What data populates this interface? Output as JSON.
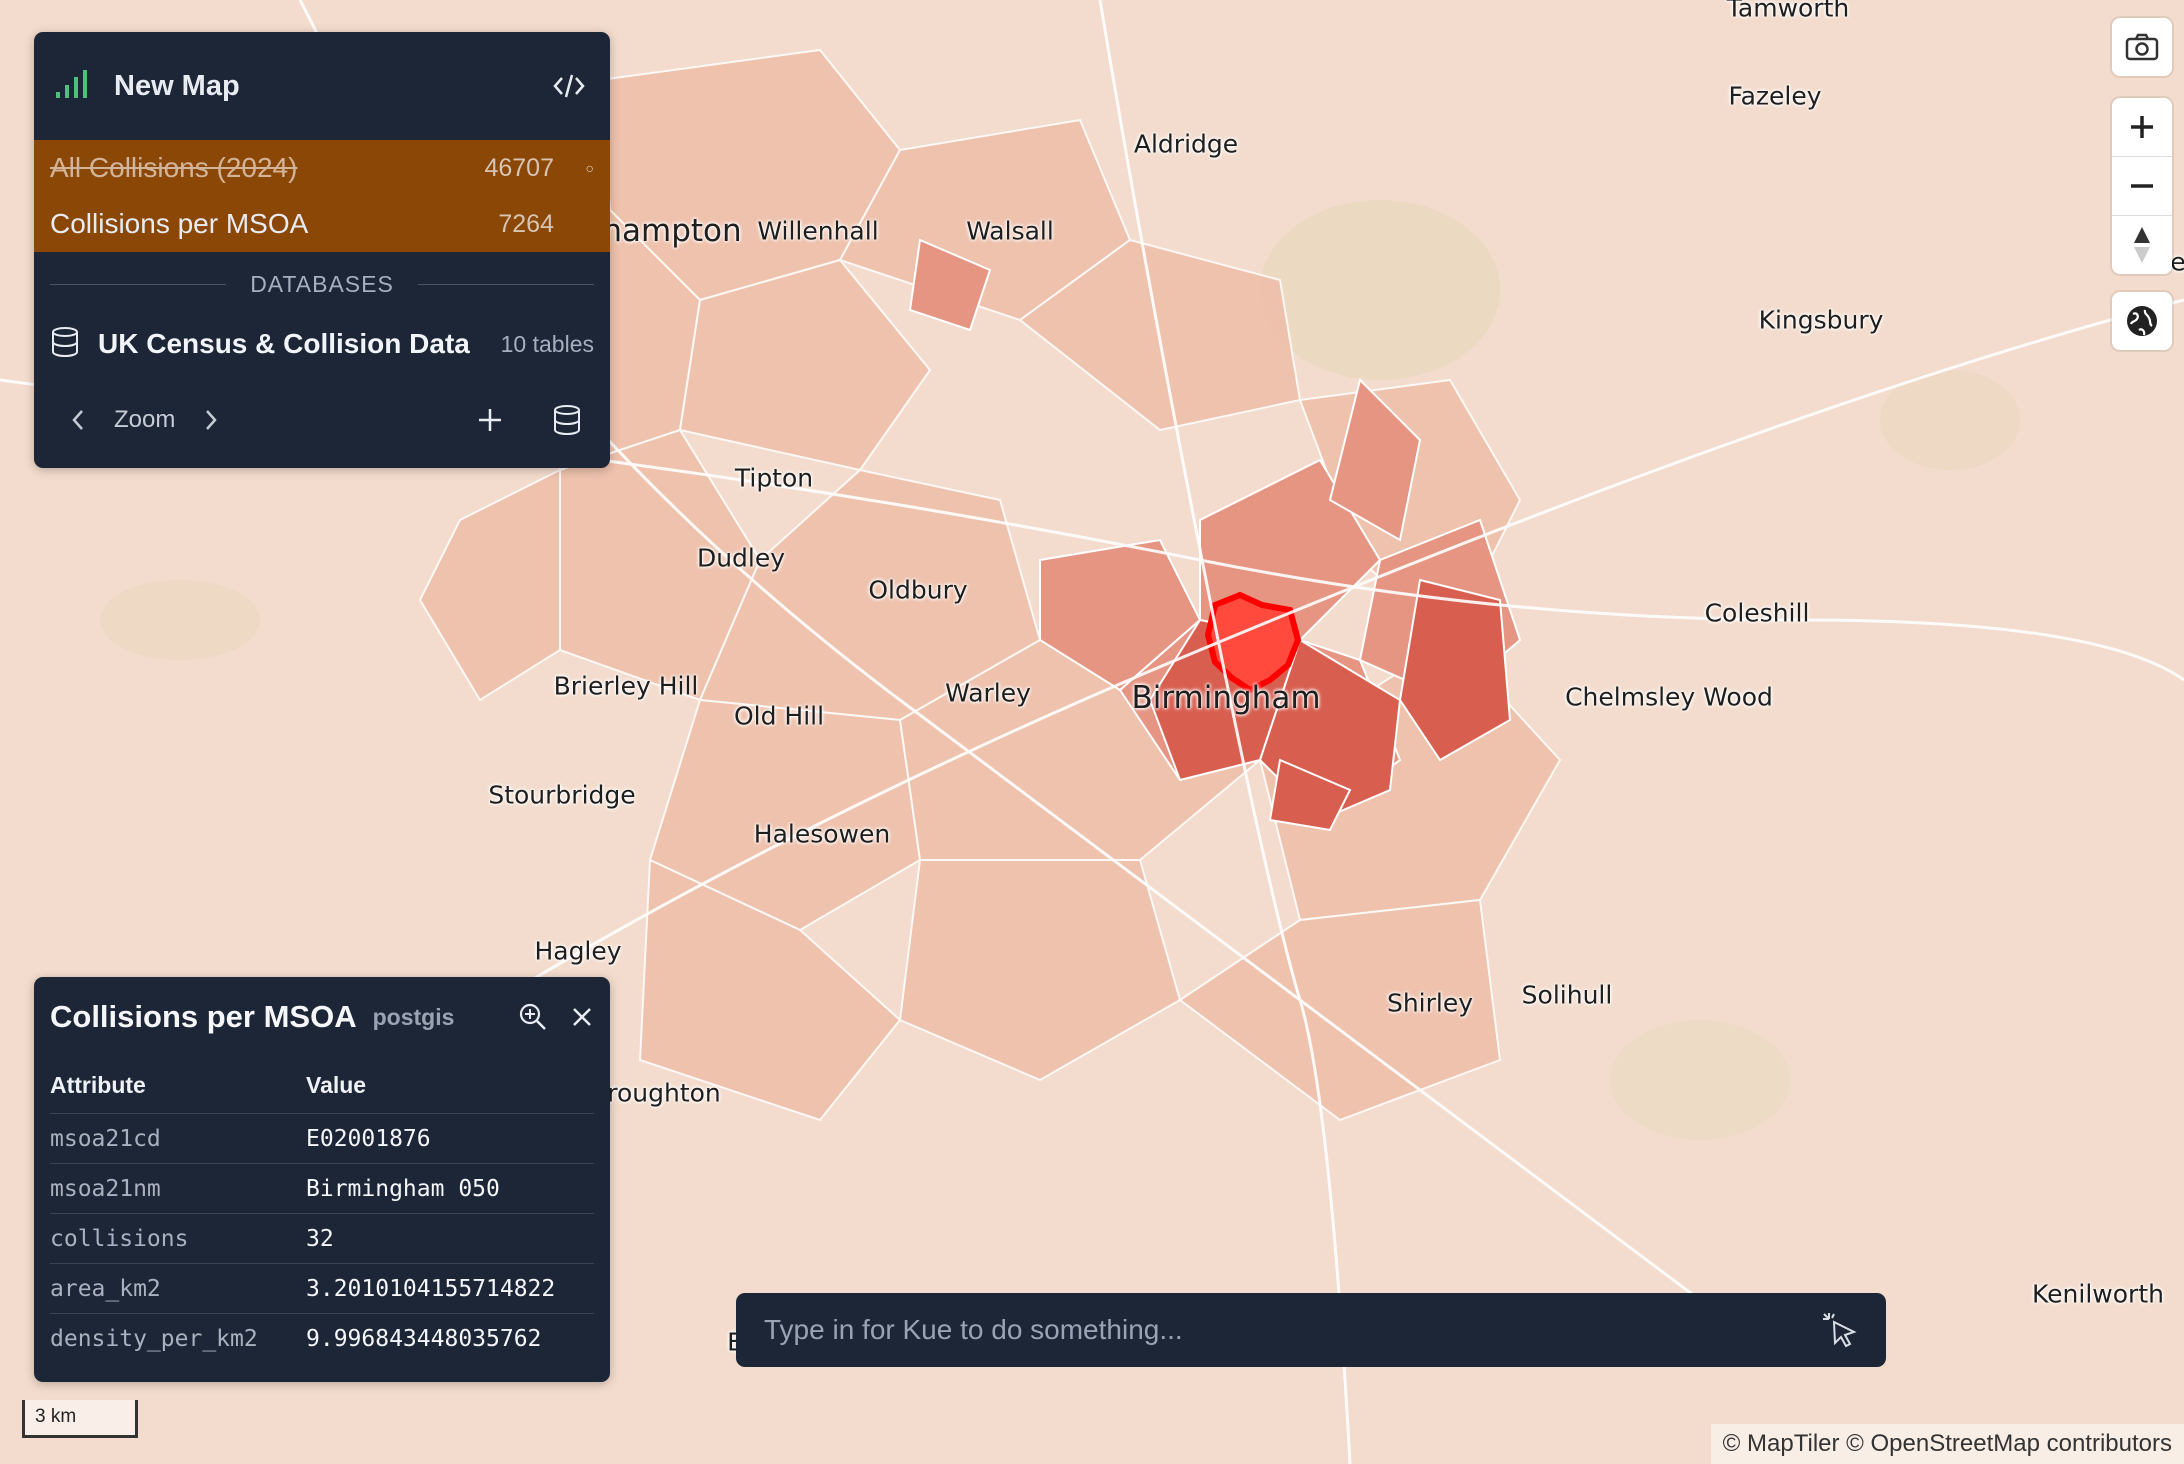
{
  "map": {
    "places": [
      {
        "name": "Tamworth"
      },
      {
        "name": "Fazeley"
      },
      {
        "name": "Aldridge"
      },
      {
        "name": "hampton"
      },
      {
        "name": "Willenhall"
      },
      {
        "name": "Walsall"
      },
      {
        "name": "Kingsbury"
      },
      {
        "name": "Tipton"
      },
      {
        "name": "Dudley"
      },
      {
        "name": "Oldbury"
      },
      {
        "name": "Coleshill"
      },
      {
        "name": "Brierley Hill"
      },
      {
        "name": "Old Hill"
      },
      {
        "name": "Warley"
      },
      {
        "name": "Birmingham"
      },
      {
        "name": "Chelmsley Wood"
      },
      {
        "name": "Stourbridge"
      },
      {
        "name": "Halesowen"
      },
      {
        "name": "Hagley"
      },
      {
        "name": "Shirley"
      },
      {
        "name": "Solihull"
      },
      {
        "name": "roughton"
      },
      {
        "name": "Kenilworth"
      },
      {
        "name": "he"
      },
      {
        "name": "E"
      }
    ],
    "choropleth_colors": {
      "low": "#f2cbb8",
      "mid": "#e79a83",
      "high": "#d8574b",
      "highlight": "#ff1a1a"
    }
  },
  "top_panel": {
    "title": "New Map",
    "layers": [
      {
        "name": "All Collisions (2024)",
        "count": "46707",
        "hidden": true,
        "dot": "○"
      },
      {
        "name": "Collisions per MSOA",
        "count": "7264"
      }
    ],
    "databases_label": "DATABASES",
    "database": {
      "name": "UK Census & Collision Data",
      "count": "10 tables"
    },
    "zoom_label": "Zoom",
    "layer_bg": "#8b4706"
  },
  "info_panel": {
    "title": "Collisions per MSOA",
    "source": "postgis",
    "col_attr": "Attribute",
    "col_value": "Value",
    "rows": [
      {
        "k": "msoa21cd",
        "v": "E02001876"
      },
      {
        "k": "msoa21nm",
        "v": "Birmingham 050"
      },
      {
        "k": "collisions",
        "v": "32"
      },
      {
        "k": "area_km2",
        "v": "3.2010104155714822"
      },
      {
        "k": "density_per_km2",
        "v": "9.996843448035762"
      }
    ]
  },
  "prompt": {
    "placeholder": "Type in for Kue to do something..."
  },
  "scale": "3 km",
  "attribution": "© MapTiler © OpenStreetMap contributors",
  "icons": [
    "signal-bars-icon",
    "code-icon",
    "database-icon",
    "chevron-left-icon",
    "chevron-right-icon",
    "plus-icon",
    "camera-icon",
    "zoom-in-icon",
    "zoom-out-icon",
    "compass-icon",
    "globe-icon",
    "magnify-icon",
    "close-icon",
    "sparkle-cursor-icon"
  ]
}
